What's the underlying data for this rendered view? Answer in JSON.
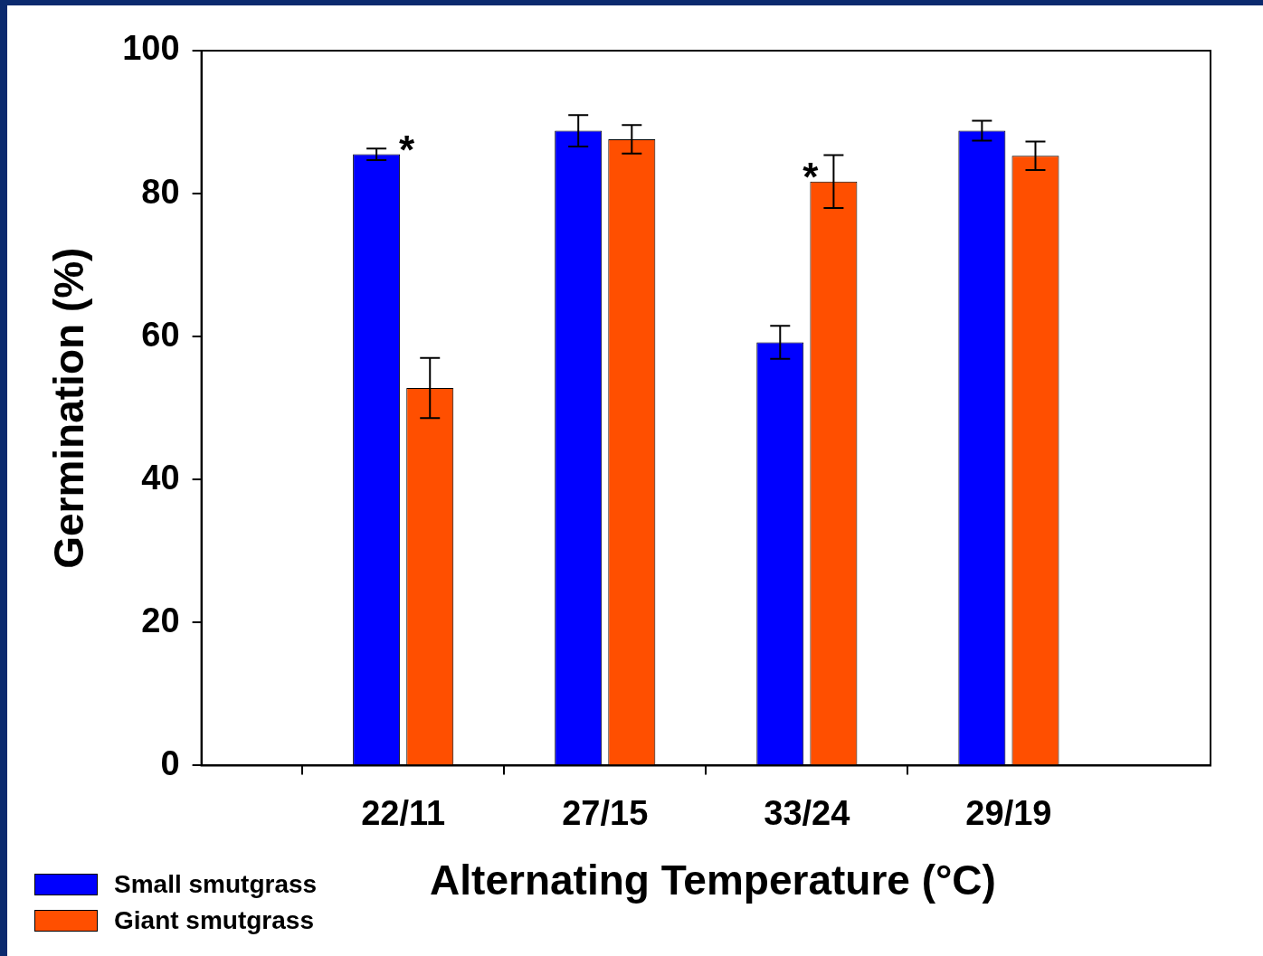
{
  "chart_data": {
    "type": "bar",
    "xlabel": "Alternating Temperature (°C)",
    "ylabel": "Germination (%)",
    "categories": [
      "22/11",
      "27/15",
      "33/24",
      "29/19"
    ],
    "series": [
      {
        "name": "Small smutgrass",
        "color": "#0000ff",
        "values": [
          85.5,
          88.8,
          59.2,
          88.8
        ],
        "errors": [
          0.8,
          2.2,
          2.3,
          1.4
        ]
      },
      {
        "name": "Giant smutgrass",
        "color": "#ff4f00",
        "values": [
          52.8,
          87.6,
          81.7,
          85.3
        ],
        "errors": [
          4.2,
          2.0,
          3.7,
          2.0
        ]
      }
    ],
    "ylim": [
      0,
      100
    ],
    "yticks": [
      0,
      20,
      40,
      60,
      80,
      100
    ],
    "grid": false,
    "legend": "bottom left",
    "annotations": [
      {
        "text": "*",
        "x": "22/11",
        "y": 85.5
      },
      {
        "text": "*",
        "x": "33/24",
        "y": 81.7
      }
    ]
  }
}
